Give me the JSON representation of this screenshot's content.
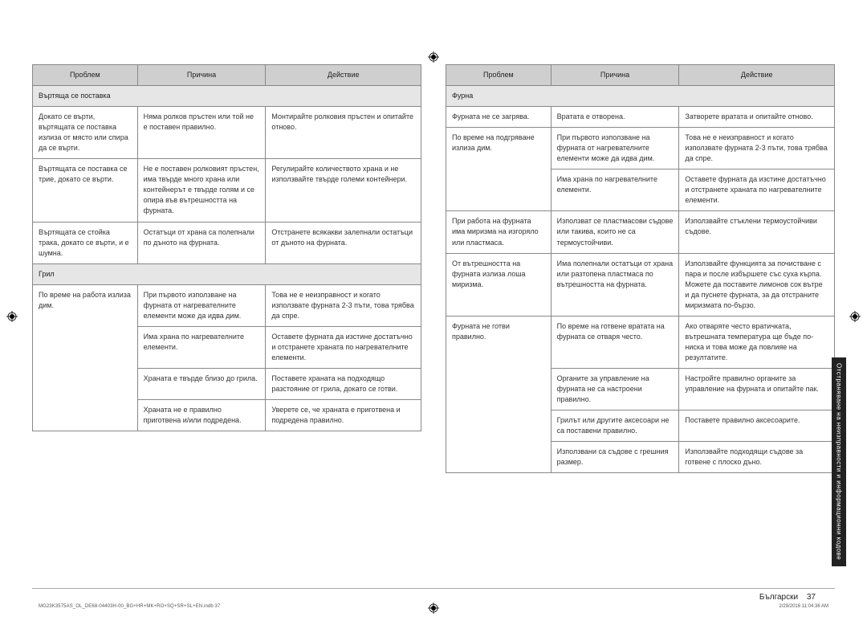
{
  "headers": {
    "problem": "Проблем",
    "cause": "Причина",
    "action": "Действие"
  },
  "sections": {
    "turntable": "Въртяща се поставка",
    "grill": "Грил",
    "oven": "Фурна"
  },
  "left_rows": [
    {
      "sec": "turntable"
    },
    {
      "p": "Докато се върти, въртящата се поставка излиза от място или спира да се върти.",
      "c": "Няма ролков пръстен или той не е поставен правилно.",
      "a": "Монтирайте ролковия пръстен и опитайте отново."
    },
    {
      "p": "Въртящата се поставка се трие, докато се върти.",
      "c": "Не е поставен ролковият пръстен, има твърде много храна или контейнерът е твърде голям и се опира във вътрешността на фурната.",
      "a": "Регулирайте количеството храна и не използвайте твърде големи контейнери."
    },
    {
      "p": "Въртящата се стойка трака, докато се върти, и е шумна.",
      "c": "Остатъци от храна са полепнали по дъното на фурната.",
      "a": "Отстранете всякакви залепнали остатъци от дъното на фурната."
    },
    {
      "sec": "grill"
    },
    {
      "p": "По време на работа излиза дим.",
      "p_rowspan": 4,
      "c": "При първото използване на фурната от нагревателните елементи може да идва дим.",
      "a": "Това не е неизправност и когато използвате фурната 2-3 пъти, това трябва да спре."
    },
    {
      "c": "Има храна по нагревателните елементи.",
      "a": "Оставете фурната да изстине достатъчно и отстранете храната по нагревателните елементи."
    },
    {
      "c": "Храната е твърде близо до грила.",
      "a": "Поставете храната на подходящо разстояние от грила, докато се готви."
    },
    {
      "c": "Храната не е правилно приготвена и/или подредена.",
      "a": "Уверете се, че храната е приготвена и подредена правилно."
    }
  ],
  "right_rows": [
    {
      "sec": "oven"
    },
    {
      "p": "Фурната не се загрява.",
      "c": "Вратата е отворена.",
      "a": "Затворете вратата и опитайте отново."
    },
    {
      "p": "По време на подгряване излиза дим.",
      "p_rowspan": 2,
      "c": "При първото използване на фурната от нагревателните елементи може да идва дим.",
      "a": "Това не е неизправност и когато използвате фурната 2-3 пъти, това трябва да спре."
    },
    {
      "c": "Има храна по нагревателните елементи.",
      "a": "Оставете фурната да изстине достатъчно и отстранете храната по нагревателните елементи."
    },
    {
      "p": "При работа на фурната има миризма на изгоряло или пластмаса.",
      "c": "Използват се пластмасови съдове или такива, които не са термоустойчиви.",
      "a": "Използвайте стъклени термоустойчиви съдове."
    },
    {
      "p": "От вътрешността на фурната излиза лоша миризма.",
      "c": "Има полепнали остатъци от храна или разтопена пластмаса по вътрешността на фурната.",
      "a": "Използвайте функцията за почистване с пара и после избършете със суха кърпа. Можете да поставите лимонов сок вътре и да пуснете фурната, за да отстраните миризмата по-бързо."
    },
    {
      "p": "Фурната не готви правилно.",
      "p_rowspan": 4,
      "c": "По време на готвене вратата на фурната се отваря често.",
      "a": "Ако отваряте често вратичката, вътрешната температура ще бъде по-ниска и това може да повлияе на резултатите."
    },
    {
      "c": "Органите за управление на фурната не са настроени правилно.",
      "a": "Настройте правилно органите за управление на фурната и опитайте пак."
    },
    {
      "c": "Грилът или другите аксесоари не са поставени правилно.",
      "a": "Поставете правилно аксесоарите."
    },
    {
      "c": "Използвани са съдове с грешния размер.",
      "a": "Използвайте подходящи съдове за готвене с плоско дъно."
    }
  ],
  "sidetab": "Отстраняване на неизправности и информационни кодове",
  "footer": {
    "lang": "Български",
    "page": "37"
  },
  "imprint": {
    "file": "MG23K3575AS_OL_DE68-04403H-00_BG+HR+MK+RO+SQ+SR+SL+EN.indb   37",
    "time": "2/29/2016   11:04:36 AM"
  }
}
